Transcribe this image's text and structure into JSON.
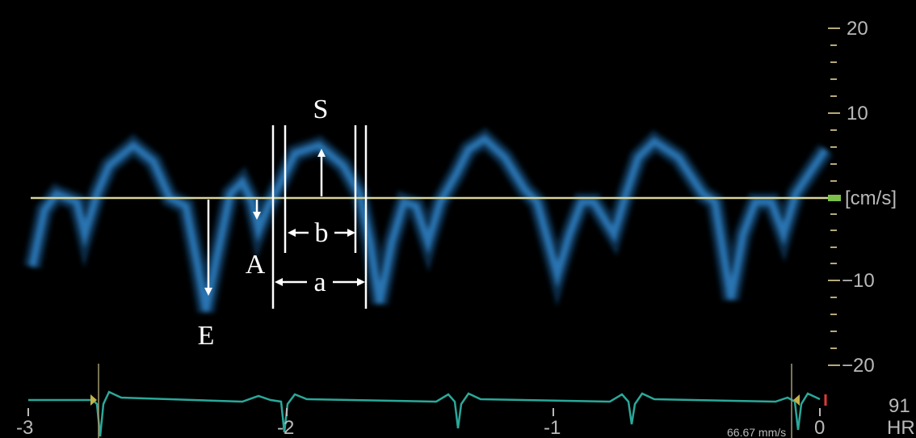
{
  "annotations": {
    "s": "S",
    "e": "E",
    "a_wave": "A",
    "interval_a": "a",
    "interval_b": "b"
  },
  "velocity_axis": {
    "unit": "[cm/s]",
    "ticks": [
      "20",
      "10",
      "−10",
      "−20"
    ]
  },
  "time_axis": {
    "ticks": [
      "-3",
      "-2",
      "-1",
      "0"
    ]
  },
  "sweep_speed": "66.67 mm/s",
  "heart_rate": {
    "value": "91",
    "label": "HR"
  }
}
